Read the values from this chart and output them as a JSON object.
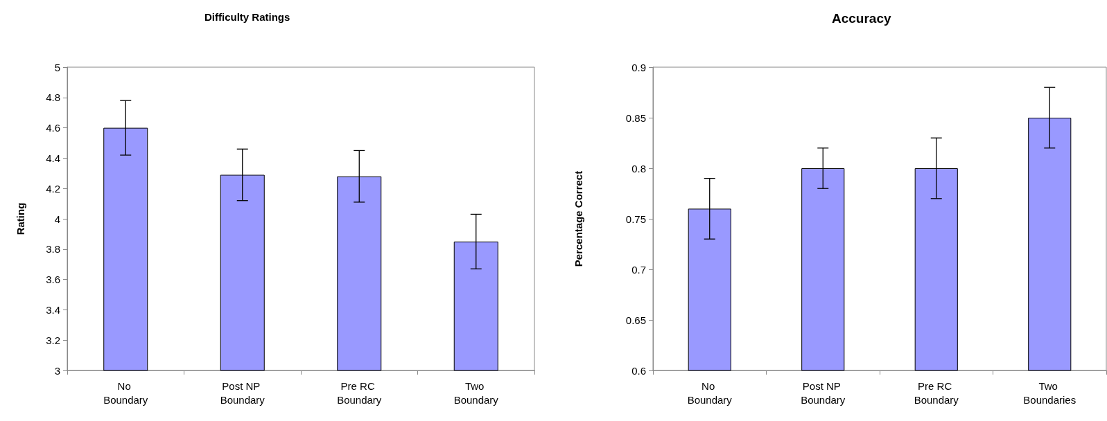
{
  "chart_data": [
    {
      "type": "bar",
      "title": "Difficulty Ratings",
      "ylabel": "Rating",
      "categories": [
        "No Boundary",
        "Post NP Boundary",
        "Pre RC Boundary",
        "Two Boundary"
      ],
      "values": [
        4.6,
        4.29,
        4.28,
        3.85
      ],
      "errors": [
        0.18,
        0.17,
        0.17,
        0.18
      ],
      "color": "#9999ff",
      "ylim": [
        3,
        5
      ],
      "yticks": [
        3,
        3.2,
        3.4,
        3.6,
        3.8,
        4,
        4.2,
        4.4,
        4.6,
        4.8,
        5
      ],
      "grid": false
    },
    {
      "type": "bar",
      "title": "Accuracy",
      "ylabel": "Percentage Correct",
      "categories": [
        "No Boundary",
        "Post NP Boundary",
        "Pre RC Boundary",
        "Two Boundaries"
      ],
      "values": [
        0.76,
        0.8,
        0.8,
        0.85
      ],
      "errors": [
        0.03,
        0.02,
        0.03,
        0.03
      ],
      "color": "#9999ff",
      "ylim": [
        0.6,
        0.9
      ],
      "yticks": [
        0.6,
        0.65,
        0.7,
        0.75,
        0.8,
        0.85,
        0.9
      ],
      "grid": false
    }
  ]
}
